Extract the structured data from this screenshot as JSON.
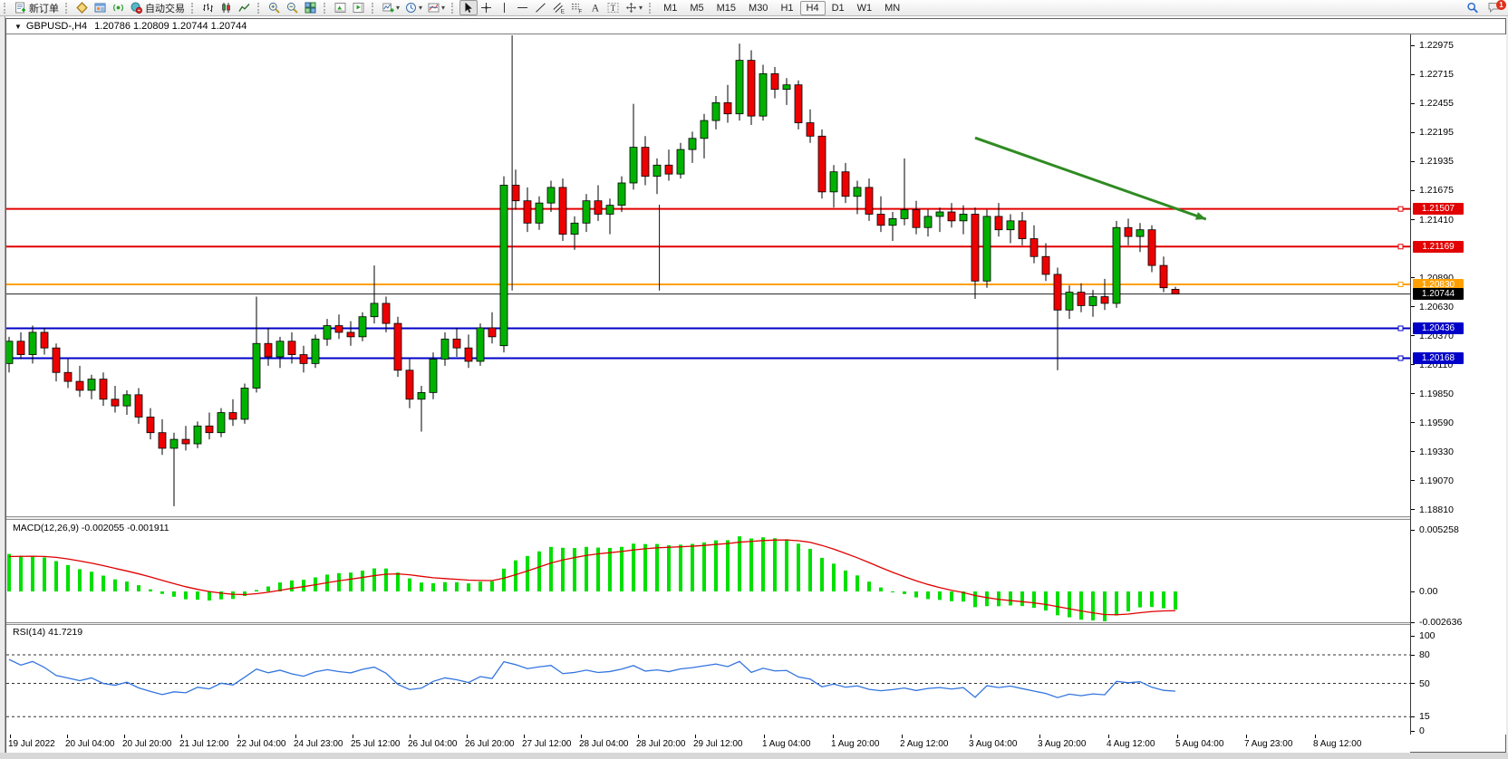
{
  "toolbar": {
    "new_order_label": "新订单",
    "auto_trading_label": "自动交易",
    "timeframes": [
      "M1",
      "M5",
      "M15",
      "M30",
      "H1",
      "H4",
      "D1",
      "W1",
      "MN"
    ],
    "active_timeframe": "H4",
    "notification_badge": "1",
    "icon_groups": [
      [
        "new-order"
      ],
      [
        "market-watch",
        "data-window",
        "navigator",
        "autotrade"
      ],
      [
        "bars-chart",
        "candles-chart",
        "line-chart"
      ],
      [
        "zoom-in",
        "zoom-out",
        "tile-windows"
      ],
      [
        "arrange-a",
        "arrange-b"
      ],
      [
        "new-chart",
        "period",
        "template"
      ],
      [
        "cursor",
        "crosshair",
        "vline",
        "hline",
        "trendline",
        "channel",
        "fibo",
        "text",
        "label",
        "shapes"
      ]
    ],
    "dropdown_icons": [
      "new-chart",
      "period",
      "template",
      "shapes"
    ],
    "labelled_icons": {
      "new-order": "新订单",
      "autotrade": "自动交易"
    }
  },
  "chart": {
    "menu_arrow": "▼",
    "symbol": "GBPUSD-,H4",
    "ohlc": "1.20786 1.20809 1.20744 1.20744"
  },
  "price_axis": {
    "ticks": [
      "1.22975",
      "1.22715",
      "1.22455",
      "1.22195",
      "1.21935",
      "1.21675",
      "1.21410",
      "1.20890",
      "1.20630",
      "1.20370",
      "1.20110",
      "1.19850",
      "1.19590",
      "1.19330",
      "1.19070",
      "1.18810"
    ]
  },
  "levels": [
    {
      "label": "1.21507",
      "price": 1.21507,
      "color": "#E20000"
    },
    {
      "label": "1.21169",
      "price": 1.21169,
      "color": "#E20000"
    },
    {
      "label": "1.20830",
      "price": 1.2083,
      "color": "#FFA000"
    },
    {
      "label": "1.20436",
      "price": 1.20436,
      "color": "#0000C8"
    },
    {
      "label": "1.20168",
      "price": 1.20168,
      "color": "#0000C8"
    }
  ],
  "current_price": {
    "label": "1.20744",
    "price": 1.20744,
    "color": "#000000"
  },
  "indicators": {
    "macd": {
      "label": "MACD(12,26,9) -0.002055 -0.001911",
      "scale": [
        "0.005258",
        "0.00",
        "-0.002636"
      ],
      "scale_values": [
        0.005258,
        0,
        -0.002636
      ]
    },
    "rsi": {
      "label": "RSI(14) 41.7219",
      "scale": [
        "100",
        "80",
        "50",
        "15",
        "0"
      ],
      "scale_values": [
        100,
        80,
        50,
        15,
        0
      ],
      "levels": [
        80,
        50,
        15
      ]
    }
  },
  "time_axis": {
    "labels": [
      "19 Jul 2022",
      "20 Jul 04:00",
      "20 Jul 20:00",
      "21 Jul 12:00",
      "22 Jul 04:00",
      "24 Jul 23:00",
      "25 Jul 12:00",
      "26 Jul 04:00",
      "26 Jul 20:00",
      "27 Jul 12:00",
      "28 Jul 04:00",
      "28 Jul 20:00",
      "29 Jul 12:00",
      "1 Aug 04:00",
      "1 Aug 20:00",
      "2 Aug 12:00",
      "3 Aug 04:00",
      "3 Aug 20:00",
      "4 Aug 12:00",
      "5 Aug 04:00",
      "7 Aug 23:00",
      "8 Aug 12:00"
    ],
    "x": [
      4,
      67,
      130,
      193,
      256,
      319,
      382,
      445,
      508,
      571,
      634,
      697,
      760,
      836,
      912,
      988,
      1064,
      1140,
      1216,
      1292,
      1368,
      1444
    ]
  },
  "chart_data": {
    "type": "candlestick",
    "symbol": "GBPUSD-",
    "timeframe": "H4",
    "up_color": "#00B200",
    "down_color": "#EE0000",
    "wick_color": "#000000",
    "macd_bar_color": "#00E000",
    "macd_signal_color": "#E00000",
    "rsi_line_color": "#3375E0",
    "candles_pips": [
      [
        2012,
        2036,
        2004,
        2032
      ],
      [
        2032,
        2040,
        2016,
        2020
      ],
      [
        2020,
        2046,
        2012,
        2040
      ],
      [
        2040,
        2044,
        2020,
        2026
      ],
      [
        2026,
        2030,
        1996,
        2004
      ],
      [
        2004,
        2016,
        1990,
        1996
      ],
      [
        1996,
        2010,
        1982,
        1988
      ],
      [
        1988,
        2002,
        1980,
        1998
      ],
      [
        1998,
        2004,
        1974,
        1980
      ],
      [
        1980,
        1992,
        1968,
        1974
      ],
      [
        1974,
        1988,
        1966,
        1984
      ],
      [
        1984,
        1990,
        1958,
        1964
      ],
      [
        1964,
        1972,
        1944,
        1950
      ],
      [
        1950,
        1962,
        1930,
        1936
      ],
      [
        1936,
        1950,
        1884,
        1944
      ],
      [
        1944,
        1956,
        1934,
        1940
      ],
      [
        1940,
        1960,
        1936,
        1956
      ],
      [
        1956,
        1968,
        1944,
        1950
      ],
      [
        1950,
        1972,
        1946,
        1968
      ],
      [
        1968,
        1980,
        1956,
        1962
      ],
      [
        1962,
        1994,
        1958,
        1990
      ],
      [
        1990,
        2072,
        1986,
        2030
      ],
      [
        2030,
        2044,
        2010,
        2018
      ],
      [
        2018,
        2036,
        2008,
        2032
      ],
      [
        2032,
        2040,
        2012,
        2020
      ],
      [
        2020,
        2028,
        2004,
        2012
      ],
      [
        2012,
        2038,
        2008,
        2034
      ],
      [
        2034,
        2052,
        2028,
        2046
      ],
      [
        2046,
        2056,
        2034,
        2040
      ],
      [
        2040,
        2050,
        2028,
        2036
      ],
      [
        2036,
        2058,
        2032,
        2054
      ],
      [
        2054,
        2100,
        2048,
        2066
      ],
      [
        2066,
        2072,
        2040,
        2048
      ],
      [
        2048,
        2054,
        2000,
        2006
      ],
      [
        2006,
        2016,
        1972,
        1980
      ],
      [
        1980,
        1992,
        1951,
        1986
      ],
      [
        1986,
        2022,
        1980,
        2016
      ],
      [
        2016,
        2040,
        2010,
        2034
      ],
      [
        2034,
        2044,
        2018,
        2026
      ],
      [
        2026,
        2038,
        2008,
        2014
      ],
      [
        2014,
        2048,
        2010,
        2044
      ],
      [
        2044,
        2058,
        2030,
        2036
      ],
      [
        2028,
        2180,
        2022,
        2172
      ],
      [
        2172,
        2186,
        2150,
        2158
      ],
      [
        2158,
        2170,
        2130,
        2138
      ],
      [
        2138,
        2162,
        2132,
        2156
      ],
      [
        2156,
        2176,
        2148,
        2170
      ],
      [
        2170,
        2178,
        2122,
        2128
      ],
      [
        2128,
        2144,
        2114,
        2138
      ],
      [
        2138,
        2164,
        2130,
        2158
      ],
      [
        2158,
        2172,
        2140,
        2146
      ],
      [
        2146,
        2160,
        2128,
        2154
      ],
      [
        2154,
        2180,
        2148,
        2174
      ],
      [
        2174,
        2245,
        2168,
        2206
      ],
      [
        2206,
        2216,
        2172,
        2180
      ],
      [
        2180,
        2196,
        2164,
        2190
      ],
      [
        2190,
        2204,
        2176,
        2182
      ],
      [
        2182,
        2210,
        2178,
        2204
      ],
      [
        2204,
        2220,
        2192,
        2214
      ],
      [
        2214,
        2236,
        2196,
        2230
      ],
      [
        2230,
        2252,
        2222,
        2246
      ],
      [
        2246,
        2262,
        2228,
        2236
      ],
      [
        2236,
        2299,
        2230,
        2284
      ],
      [
        2284,
        2293,
        2226,
        2234
      ],
      [
        2234,
        2280,
        2230,
        2272
      ],
      [
        2272,
        2278,
        2250,
        2258
      ],
      [
        2258,
        2268,
        2244,
        2262
      ],
      [
        2262,
        2266,
        2222,
        2228
      ],
      [
        2228,
        2240,
        2210,
        2216
      ],
      [
        2216,
        2222,
        2160,
        2166
      ],
      [
        2166,
        2190,
        2152,
        2184
      ],
      [
        2184,
        2192,
        2156,
        2162
      ],
      [
        2162,
        2176,
        2146,
        2170
      ],
      [
        2170,
        2178,
        2140,
        2146
      ],
      [
        2146,
        2162,
        2130,
        2136
      ],
      [
        2136,
        2148,
        2122,
        2142
      ],
      [
        2142,
        2196,
        2136,
        2150
      ],
      [
        2150,
        2158,
        2128,
        2134
      ],
      [
        2134,
        2150,
        2126,
        2144
      ],
      [
        2144,
        2152,
        2130,
        2148
      ],
      [
        2148,
        2156,
        2134,
        2140
      ],
      [
        2140,
        2154,
        2128,
        2146
      ],
      [
        2146,
        2152,
        2070,
        2086
      ],
      [
        2086,
        2150,
        2080,
        2144
      ],
      [
        2144,
        2156,
        2126,
        2132
      ],
      [
        2132,
        2146,
        2120,
        2140
      ],
      [
        2140,
        2148,
        2118,
        2124
      ],
      [
        2124,
        2136,
        2102,
        2108
      ],
      [
        2108,
        2120,
        2086,
        2092
      ],
      [
        2092,
        2098,
        2006,
        2060
      ],
      [
        2060,
        2082,
        2052,
        2076
      ],
      [
        2076,
        2084,
        2058,
        2064
      ],
      [
        2064,
        2078,
        2054,
        2072
      ],
      [
        2072,
        2088,
        2060,
        2066
      ],
      [
        2066,
        2140,
        2062,
        2134
      ],
      [
        2134,
        2142,
        2118,
        2126
      ],
      [
        2126,
        2138,
        2112,
        2132
      ],
      [
        2132,
        2136,
        2094,
        2100
      ],
      [
        2100,
        2108,
        2076,
        2080
      ],
      [
        2078.6,
        2080.9,
        2074.4,
        2074.4
      ]
    ],
    "prehistory_closes_pips": [
      1878,
      1890,
      1884,
      1902,
      1910,
      1898,
      1915,
      1928,
      1920,
      1938,
      1950,
      1942,
      1958,
      1972,
      1965,
      1980,
      1992,
      1985,
      2000,
      2012,
      2004,
      2018,
      2030,
      2022,
      2034,
      2028
    ],
    "annotations": [
      {
        "type": "arrow",
        "x1_bar": 82,
        "p1": 1.22145,
        "x2_bar": 101.6,
        "p2": 1.21415,
        "color": "#2F8B22",
        "width": 3
      },
      {
        "type": "vline",
        "bar": 42.7,
        "p1": 1.23085,
        "p2": 1.20775
      },
      {
        "type": "vline",
        "bar": 55.2,
        "p1": 1.21545,
        "p2": 1.20775
      }
    ]
  }
}
